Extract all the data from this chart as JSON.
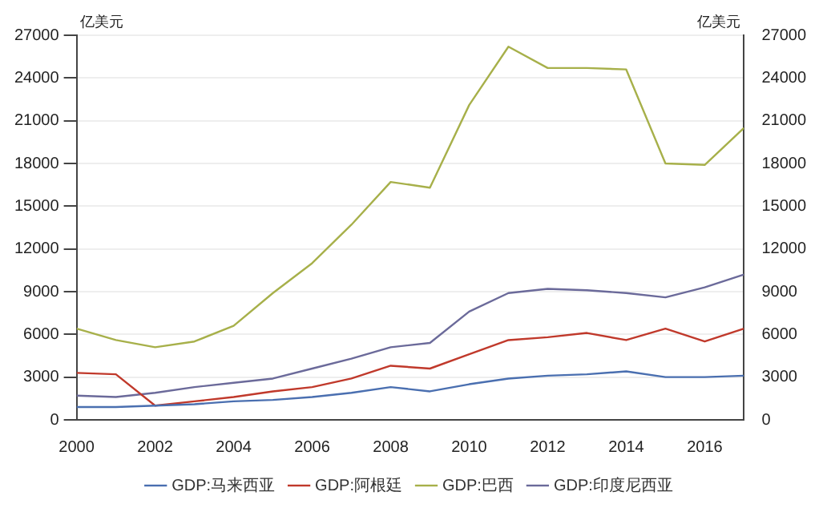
{
  "chart_data": {
    "type": "line",
    "ylabel": "亿美元",
    "y2label": "亿美元",
    "x": [
      2000,
      2001,
      2002,
      2003,
      2004,
      2005,
      2006,
      2007,
      2008,
      2009,
      2010,
      2011,
      2012,
      2013,
      2014,
      2015,
      2016,
      2017
    ],
    "xlim": [
      2000,
      2017
    ],
    "xticks": [
      2000,
      2002,
      2004,
      2006,
      2008,
      2010,
      2012,
      2014,
      2016
    ],
    "ylim": [
      0,
      27000
    ],
    "yticks": [
      0,
      3000,
      6000,
      9000,
      12000,
      15000,
      18000,
      21000,
      24000,
      27000
    ],
    "y2lim": [
      0,
      27000
    ],
    "y2ticks": [
      0,
      3000,
      6000,
      9000,
      12000,
      15000,
      18000,
      21000,
      24000,
      27000
    ],
    "grid": "y",
    "legend": "bottom",
    "marker": "none",
    "line_style": "solid",
    "series": [
      {
        "name": "GDP:马来西亚",
        "color": "#4a6fb0",
        "values": [
          900,
          900,
          1000,
          1100,
          1300,
          1400,
          1600,
          1900,
          2300,
          2000,
          2500,
          2900,
          3100,
          3200,
          3400,
          3000,
          3000,
          3100
        ]
      },
      {
        "name": "GDP:阿根廷",
        "color": "#c0392b",
        "values": [
          3300,
          3200,
          1000,
          1300,
          1600,
          2000,
          2300,
          2900,
          3800,
          3600,
          4600,
          5600,
          5800,
          6100,
          5600,
          6400,
          5500,
          6400
        ]
      },
      {
        "name": "GDP:巴西",
        "color": "#a7b04a",
        "values": [
          6400,
          5600,
          5100,
          5500,
          6600,
          8900,
          11000,
          13700,
          16700,
          16300,
          22100,
          26200,
          24700,
          24700,
          24600,
          18000,
          17900,
          20500
        ]
      },
      {
        "name": "GDP:印度尼西亚",
        "color": "#6b6a9a",
        "values": [
          1700,
          1600,
          1900,
          2300,
          2600,
          2900,
          3600,
          4300,
          5100,
          5400,
          7600,
          8900,
          9200,
          9100,
          8900,
          8600,
          9300,
          10200
        ]
      }
    ]
  }
}
